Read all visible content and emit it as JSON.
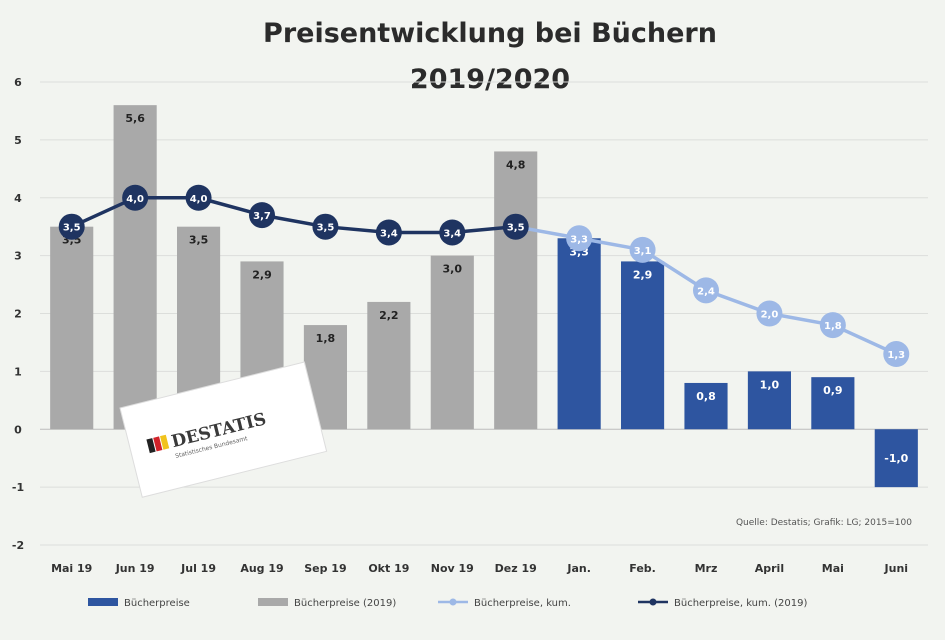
{
  "chart_data": {
    "type": "bar",
    "title_line1": "Preisentwicklung bei Büchern",
    "title_line2": "2019/2020",
    "categories": [
      "Mai 19",
      "Jun 19",
      "Jul 19",
      "Aug 19",
      "Sep 19",
      "Okt 19",
      "Nov 19",
      "Dez 19",
      "Jan.",
      "Feb.",
      "Mrz",
      "April",
      "Mai",
      "Juni"
    ],
    "ylim": [
      -2,
      6
    ],
    "yticks": [
      -2,
      -1,
      0,
      1,
      2,
      3,
      4,
      5,
      6
    ],
    "grid": true,
    "legend_position": "bottom",
    "series": [
      {
        "name": "Bücherpreise",
        "type": "bar",
        "color": "#2e55a0",
        "values": [
          null,
          null,
          null,
          null,
          null,
          null,
          null,
          null,
          3.3,
          2.9,
          0.8,
          1.0,
          0.9,
          -1.0
        ],
        "labels": [
          "",
          "",
          "",
          "",
          "",
          "",
          "",
          "",
          "3,3",
          "2,9",
          "0,8",
          "1,0",
          "0,9",
          "-1,0"
        ]
      },
      {
        "name": "Bücherpreise (2019)",
        "type": "bar",
        "color": "#a9a9a9",
        "values": [
          3.5,
          5.6,
          3.5,
          2.9,
          1.8,
          2.2,
          3.0,
          4.8,
          null,
          null,
          null,
          null,
          null,
          null
        ],
        "labels": [
          "3,5",
          "5,6",
          "3,5",
          "2,9",
          "1,8",
          "2,2",
          "3,0",
          "4,8",
          "",
          "",
          "",
          "",
          "",
          ""
        ]
      },
      {
        "name": "Bücherpreise, kum.",
        "type": "line",
        "color": "#9db8e6",
        "values": [
          null,
          null,
          null,
          null,
          null,
          null,
          null,
          3.5,
          3.3,
          3.1,
          2.4,
          2.0,
          1.8,
          1.3
        ],
        "labels": [
          "",
          "",
          "",
          "",
          "",
          "",
          "",
          "",
          "3,3",
          "3,1",
          "2,4",
          "2,0",
          "1,8",
          "1,3"
        ]
      },
      {
        "name": "Bücherpreise, kum. (2019)",
        "type": "line",
        "color": "#1f3461",
        "values": [
          3.5,
          4.0,
          4.0,
          3.7,
          3.5,
          3.4,
          3.4,
          3.5,
          null,
          null,
          null,
          null,
          null,
          null
        ],
        "labels": [
          "3,5",
          "4,0",
          "4,0",
          "3,7",
          "3,5",
          "3,4",
          "3,4",
          "3,5",
          "",
          "",
          "",
          "",
          "",
          ""
        ]
      }
    ],
    "source": "Quelle: Destatis; Grafik: LG; 2015=100"
  },
  "logo": {
    "text": "DESTATIS",
    "subtitle": "Statistisches Bundesamt"
  }
}
